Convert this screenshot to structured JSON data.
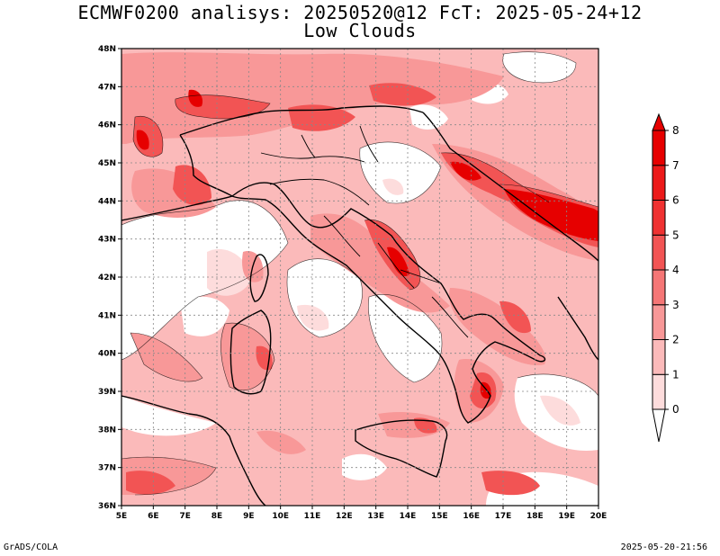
{
  "title_line1": "ECMWF0200 analisys: 20250520@12 FcT: 2025-05-24+12",
  "title_line2": "Low Clouds",
  "footer_left": "GrADS/COLA",
  "footer_right": "2025-05-20-21:56",
  "map": {
    "lon_range": [
      5,
      20
    ],
    "lat_range": [
      36,
      48
    ],
    "lon_ticks": [
      "5E",
      "6E",
      "7E",
      "8E",
      "9E",
      "10E",
      "11E",
      "12E",
      "13E",
      "14E",
      "15E",
      "16E",
      "17E",
      "18E",
      "19E",
      "20E"
    ],
    "lat_ticks": [
      "36N",
      "37N",
      "38N",
      "39N",
      "40N",
      "41N",
      "42N",
      "43N",
      "44N",
      "45N",
      "46N",
      "47N",
      "48N"
    ],
    "gridlines": "dotted"
  },
  "colorbar": {
    "labels": [
      "0",
      "1",
      "2",
      "3",
      "4",
      "5",
      "6",
      "7",
      "8"
    ],
    "colors": [
      "#ffffff",
      "#fddcdc",
      "#fbbaba",
      "#f89898",
      "#f57676",
      "#f25454",
      "#ef3232",
      "#ec1a1a",
      "#e60000"
    ]
  }
}
